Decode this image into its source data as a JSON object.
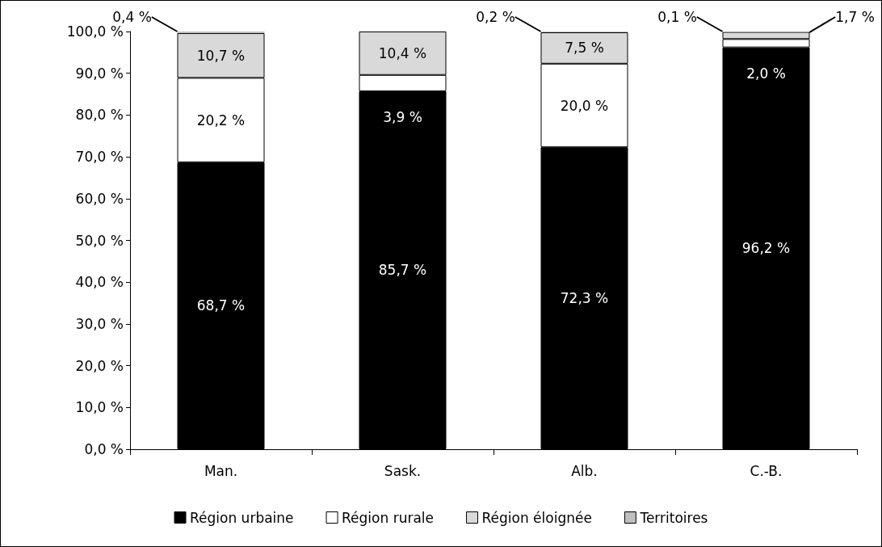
{
  "chart_data": {
    "type": "bar",
    "stacked": true,
    "categories": [
      "Man.",
      "Sask.",
      "Alb.",
      "C.-B."
    ],
    "series": [
      {
        "name": "Région urbaine",
        "color": "#000000",
        "values": [
          68.7,
          85.7,
          72.3,
          96.2
        ],
        "value_labels": [
          "68,7 %",
          "85,7 %",
          "72,3 %",
          "96,2 %"
        ]
      },
      {
        "name": "Région rurale",
        "color": "#ffffff",
        "values": [
          20.2,
          3.9,
          20.0,
          2.0
        ],
        "value_labels": [
          "20,2 %",
          "3,9 %",
          "20,0 %",
          "2,0 %"
        ]
      },
      {
        "name": "Région éloignée",
        "color": "#d9d9d9",
        "values": [
          10.7,
          10.4,
          7.5,
          1.7
        ],
        "value_labels": [
          "10,7 %",
          "10,4 %",
          "7,5 %",
          "1,7 %"
        ]
      },
      {
        "name": "Territoires",
        "color": "#bfbfbf",
        "values": [
          0.4,
          null,
          0.2,
          0.1
        ],
        "value_labels": [
          "0,4 %",
          null,
          "0,2 %",
          "0,1 %"
        ]
      }
    ],
    "ylim": [
      0,
      100
    ],
    "yticks": [
      {
        "value": 0,
        "label": "0,0 %"
      },
      {
        "value": 10,
        "label": "10,0 %"
      },
      {
        "value": 20,
        "label": "20,0 %"
      },
      {
        "value": 30,
        "label": "30,0 %"
      },
      {
        "value": 40,
        "label": "40,0 %"
      },
      {
        "value": 50,
        "label": "50,0 %"
      },
      {
        "value": 60,
        "label": "60,0 %"
      },
      {
        "value": 70,
        "label": "70,0 %"
      },
      {
        "value": 80,
        "label": "80,0 %"
      },
      {
        "value": 90,
        "label": "90,0 %"
      },
      {
        "value": 100,
        "label": "100,0 %"
      }
    ],
    "grid": false,
    "legend": "bottom"
  }
}
